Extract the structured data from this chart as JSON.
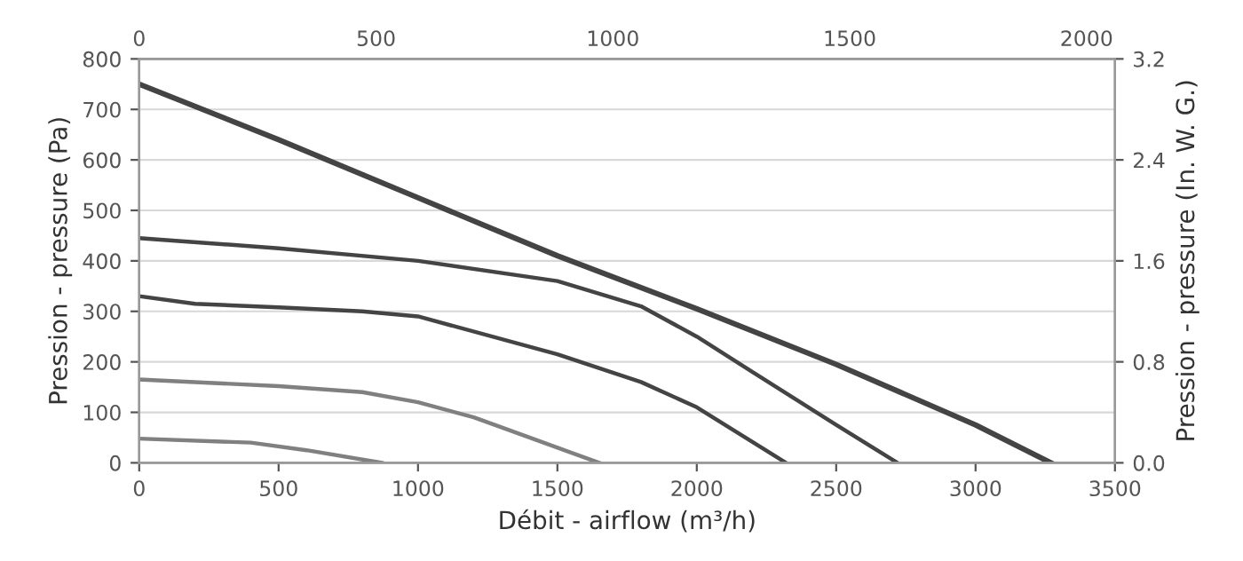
{
  "chart_data": {
    "type": "line",
    "xlabel": "Débit - airflow (m³/h)",
    "ylabel": "Pression - pressure (Pa)",
    "y2label": "Pression - pressure (In. W. G.)",
    "xlim": [
      0,
      3500
    ],
    "xticks": [
      0,
      500,
      1000,
      1500,
      2000,
      2500,
      3000,
      3500
    ],
    "ylim": [
      0,
      800
    ],
    "yticks": [
      0,
      100,
      200,
      300,
      400,
      500,
      600,
      700,
      800
    ],
    "x2lim": [
      0,
      2060
    ],
    "x2ticks": [
      0,
      500,
      1000,
      1500,
      2000
    ],
    "y2lim": [
      0,
      3.2
    ],
    "y2ticks": [
      {
        "value": 0,
        "label": "0.0"
      },
      0.8,
      1.6,
      2.4,
      3.2
    ],
    "grid": "y",
    "marker": "none",
    "line_style": "solid",
    "series": [
      {
        "color": "#444444",
        "x": [
          0,
          500,
          1000,
          1500,
          2000,
          2500,
          3000,
          3270
        ],
        "values": [
          750,
          640,
          525,
          410,
          305,
          195,
          75,
          0
        ]
      },
      {
        "color": "#444444",
        "x": [
          0,
          500,
          1000,
          1500,
          1800,
          2000,
          2200,
          2500,
          2720
        ],
        "values": [
          445,
          425,
          400,
          360,
          310,
          250,
          180,
          75,
          0
        ]
      },
      {
        "color": "#444444",
        "x": [
          0,
          200,
          500,
          800,
          1000,
          1500,
          1800,
          2000,
          2320
        ],
        "values": [
          330,
          315,
          308,
          300,
          290,
          215,
          160,
          110,
          0
        ]
      },
      {
        "color": "#808080",
        "x": [
          0,
          500,
          800,
          1000,
          1200,
          1400,
          1650
        ],
        "values": [
          165,
          152,
          140,
          120,
          90,
          50,
          0
        ]
      },
      {
        "color": "#808080",
        "x": [
          0,
          400,
          600,
          870
        ],
        "values": [
          48,
          40,
          25,
          0
        ]
      }
    ]
  }
}
